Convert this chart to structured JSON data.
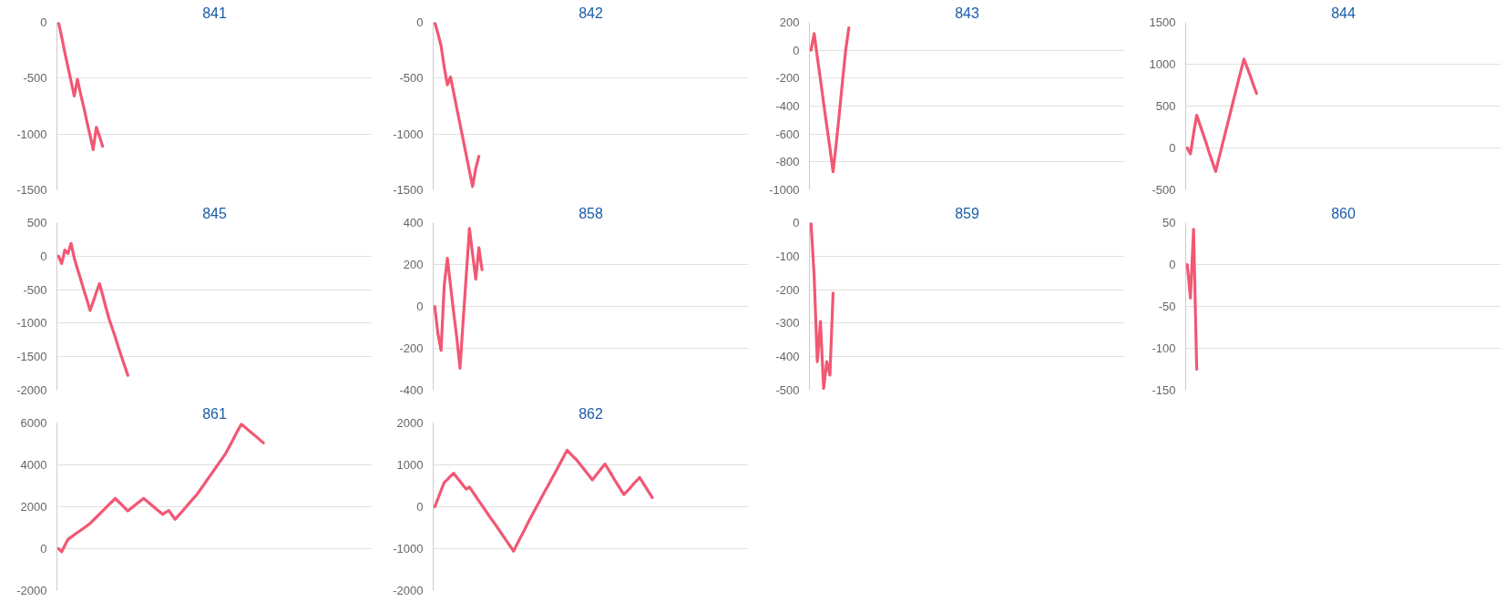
{
  "chart_data": [
    {
      "type": "line",
      "title": "841",
      "tick_labels": "y",
      "grid": "y",
      "color": "#f25773",
      "ylim": [
        -1500,
        0
      ],
      "yticks": [
        -1500,
        -1000,
        -500,
        0
      ],
      "categories": [
        null,
        null,
        null,
        null,
        null,
        null,
        null,
        null,
        null,
        null,
        null,
        null,
        null,
        null,
        null,
        null,
        null,
        null,
        null,
        null,
        null,
        null,
        null,
        null,
        null,
        null,
        null,
        null,
        null,
        null,
        null,
        null,
        null,
        null,
        null,
        null,
        null,
        null,
        null,
        null,
        null,
        null,
        null,
        null,
        null,
        null,
        null,
        null,
        null,
        null,
        null,
        null,
        null,
        null,
        null,
        null,
        null,
        null,
        null,
        null,
        null,
        null,
        null,
        null,
        null,
        null,
        null,
        null,
        null,
        null,
        null,
        null,
        null,
        null,
        null,
        null,
        null,
        null,
        null,
        null,
        null,
        null,
        null,
        null,
        null,
        null,
        null,
        null,
        null,
        null,
        null,
        null,
        null,
        null,
        null,
        null,
        null,
        null,
        null,
        null
      ],
      "values": [
        0,
        -130,
        -270,
        -400,
        -530,
        -660,
        -510,
        -640,
        -760,
        -890,
        -1010,
        -1140,
        -940,
        -1020,
        -1110,
        null,
        null,
        null,
        null,
        null,
        null,
        null,
        null,
        null,
        null,
        null,
        null,
        null,
        null,
        null,
        null,
        null,
        null,
        null,
        null,
        null,
        null,
        null,
        null,
        null,
        null,
        null,
        null,
        null,
        null,
        null,
        null,
        null,
        null,
        null,
        null,
        null,
        null,
        null,
        null,
        null,
        null,
        null,
        null,
        null,
        null,
        null,
        null,
        null,
        null,
        null,
        null,
        null,
        null,
        null,
        null,
        null,
        null,
        null,
        null,
        null,
        null,
        null,
        null,
        null,
        null,
        null,
        null,
        null,
        null,
        null,
        null,
        null,
        null,
        null,
        null,
        null,
        null,
        null,
        null,
        null,
        null,
        null,
        null,
        null
      ]
    },
    {
      "type": "line",
      "title": "842",
      "tick_labels": "y",
      "grid": "y",
      "color": "#f25773",
      "ylim": [
        -1500,
        0
      ],
      "yticks": [
        -1500,
        -1000,
        -500,
        0
      ],
      "categories": [
        null,
        null,
        null,
        null,
        null,
        null,
        null,
        null,
        null,
        null,
        null,
        null,
        null,
        null,
        null,
        null,
        null,
        null,
        null,
        null,
        null,
        null,
        null,
        null,
        null,
        null,
        null,
        null,
        null,
        null,
        null,
        null,
        null,
        null,
        null,
        null,
        null,
        null,
        null,
        null,
        null,
        null,
        null,
        null,
        null,
        null,
        null,
        null,
        null,
        null,
        null,
        null,
        null,
        null,
        null,
        null,
        null,
        null,
        null,
        null,
        null,
        null,
        null,
        null,
        null,
        null,
        null,
        null,
        null,
        null,
        null,
        null,
        null,
        null,
        null,
        null,
        null,
        null,
        null,
        null,
        null,
        null,
        null,
        null,
        null,
        null,
        null,
        null,
        null,
        null,
        null,
        null,
        null,
        null,
        null,
        null,
        null,
        null,
        null,
        null
      ],
      "values": [
        0,
        -100,
        -210,
        -400,
        -560,
        -490,
        -630,
        -770,
        -910,
        -1050,
        -1190,
        -1330,
        -1470,
        -1310,
        -1200,
        null,
        null,
        null,
        null,
        null,
        null,
        null,
        null,
        null,
        null,
        null,
        null,
        null,
        null,
        null,
        null,
        null,
        null,
        null,
        null,
        null,
        null,
        null,
        null,
        null,
        null,
        null,
        null,
        null,
        null,
        null,
        null,
        null,
        null,
        null,
        null,
        null,
        null,
        null,
        null,
        null,
        null,
        null,
        null,
        null,
        null,
        null,
        null,
        null,
        null,
        null,
        null,
        null,
        null,
        null,
        null,
        null,
        null,
        null,
        null,
        null,
        null,
        null,
        null,
        null,
        null,
        null,
        null,
        null,
        null,
        null,
        null,
        null,
        null,
        null,
        null,
        null,
        null,
        null,
        null,
        null,
        null,
        null,
        null,
        null
      ]
    },
    {
      "type": "line",
      "title": "843",
      "tick_labels": "y",
      "grid": "y",
      "color": "#f25773",
      "ylim": [
        -1000,
        200
      ],
      "yticks": [
        -1000,
        -800,
        -600,
        -400,
        -200,
        0,
        200
      ],
      "categories": [
        null,
        null,
        null,
        null,
        null,
        null,
        null,
        null,
        null,
        null,
        null,
        null,
        null,
        null,
        null,
        null,
        null,
        null,
        null,
        null,
        null,
        null,
        null,
        null,
        null,
        null,
        null,
        null,
        null,
        null,
        null,
        null,
        null,
        null,
        null,
        null,
        null,
        null,
        null,
        null,
        null,
        null,
        null,
        null,
        null,
        null,
        null,
        null,
        null,
        null,
        null,
        null,
        null,
        null,
        null,
        null,
        null,
        null,
        null,
        null,
        null,
        null,
        null,
        null,
        null,
        null,
        null,
        null,
        null,
        null,
        null,
        null,
        null,
        null,
        null,
        null,
        null,
        null,
        null,
        null,
        null,
        null,
        null,
        null,
        null,
        null,
        null,
        null,
        null,
        null,
        null,
        null,
        null,
        null,
        null,
        null,
        null,
        null,
        null,
        null
      ],
      "values": [
        0,
        120,
        -50,
        -210,
        -380,
        -540,
        -700,
        -870,
        -670,
        -450,
        -220,
        0,
        160,
        null,
        null,
        null,
        null,
        null,
        null,
        null,
        null,
        null,
        null,
        null,
        null,
        null,
        null,
        null,
        null,
        null,
        null,
        null,
        null,
        null,
        null,
        null,
        null,
        null,
        null,
        null,
        null,
        null,
        null,
        null,
        null,
        null,
        null,
        null,
        null,
        null,
        null,
        null,
        null,
        null,
        null,
        null,
        null,
        null,
        null,
        null,
        null,
        null,
        null,
        null,
        null,
        null,
        null,
        null,
        null,
        null,
        null,
        null,
        null,
        null,
        null,
        null,
        null,
        null,
        null,
        null,
        null,
        null,
        null,
        null,
        null,
        null,
        null,
        null,
        null,
        null,
        null,
        null,
        null,
        null,
        null,
        null,
        null,
        null,
        null,
        null
      ]
    },
    {
      "type": "line",
      "title": "844",
      "tick_labels": "y",
      "grid": "y",
      "color": "#f25773",
      "ylim": [
        -500,
        1500
      ],
      "yticks": [
        -500,
        0,
        500,
        1000,
        1500
      ],
      "categories": [
        null,
        null,
        null,
        null,
        null,
        null,
        null,
        null,
        null,
        null,
        null,
        null,
        null,
        null,
        null,
        null,
        null,
        null,
        null,
        null,
        null,
        null,
        null,
        null,
        null,
        null,
        null,
        null,
        null,
        null,
        null,
        null,
        null,
        null,
        null,
        null,
        null,
        null,
        null,
        null,
        null,
        null,
        null,
        null,
        null,
        null,
        null,
        null,
        null,
        null,
        null,
        null,
        null,
        null,
        null,
        null,
        null,
        null,
        null,
        null,
        null,
        null,
        null,
        null,
        null,
        null,
        null,
        null,
        null,
        null,
        null,
        null,
        null,
        null,
        null,
        null,
        null,
        null,
        null,
        null,
        null,
        null,
        null,
        null,
        null,
        null,
        null,
        null,
        null,
        null,
        null,
        null,
        null,
        null,
        null,
        null,
        null,
        null,
        null,
        null
      ],
      "values": [
        0,
        -70,
        170,
        390,
        280,
        170,
        60,
        -60,
        -170,
        -280,
        -130,
        20,
        170,
        320,
        470,
        620,
        770,
        920,
        1060,
        960,
        860,
        750,
        650,
        null,
        null,
        null,
        null,
        null,
        null,
        null,
        null,
        null,
        null,
        null,
        null,
        null,
        null,
        null,
        null,
        null,
        null,
        null,
        null,
        null,
        null,
        null,
        null,
        null,
        null,
        null,
        null,
        null,
        null,
        null,
        null,
        null,
        null,
        null,
        null,
        null,
        null,
        null,
        null,
        null,
        null,
        null,
        null,
        null,
        null,
        null,
        null,
        null,
        null,
        null,
        null,
        null,
        null,
        null,
        null,
        null,
        null,
        null,
        null,
        null,
        null,
        null,
        null,
        null,
        null,
        null,
        null,
        null,
        null,
        null,
        null,
        null,
        null,
        null,
        null,
        null
      ]
    },
    {
      "type": "line",
      "title": "845",
      "tick_labels": "y",
      "grid": "y",
      "color": "#f25773",
      "ylim": [
        -2000,
        500
      ],
      "yticks": [
        -2000,
        -1500,
        -1000,
        -500,
        0,
        500
      ],
      "categories": [
        null,
        null,
        null,
        null,
        null,
        null,
        null,
        null,
        null,
        null,
        null,
        null,
        null,
        null,
        null,
        null,
        null,
        null,
        null,
        null,
        null,
        null,
        null,
        null,
        null,
        null,
        null,
        null,
        null,
        null,
        null,
        null,
        null,
        null,
        null,
        null,
        null,
        null,
        null,
        null,
        null,
        null,
        null,
        null,
        null,
        null,
        null,
        null,
        null,
        null,
        null,
        null,
        null,
        null,
        null,
        null,
        null,
        null,
        null,
        null,
        null,
        null,
        null,
        null,
        null,
        null,
        null,
        null,
        null,
        null,
        null,
        null,
        null,
        null,
        null,
        null,
        null,
        null,
        null,
        null,
        null,
        null,
        null,
        null,
        null,
        null,
        null,
        null,
        null,
        null,
        null,
        null,
        null,
        null,
        null,
        null,
        null,
        null,
        null,
        null
      ],
      "values": [
        0,
        -110,
        90,
        40,
        190,
        -30,
        -190,
        -340,
        -500,
        -650,
        -810,
        -680,
        -540,
        -410,
        -580,
        -760,
        -930,
        -1070,
        -1210,
        -1360,
        -1500,
        -1640,
        -1780,
        null,
        null,
        null,
        null,
        null,
        null,
        null,
        null,
        null,
        null,
        null,
        null,
        null,
        null,
        null,
        null,
        null,
        null,
        null,
        null,
        null,
        null,
        null,
        null,
        null,
        null,
        null,
        null,
        null,
        null,
        null,
        null,
        null,
        null,
        null,
        null,
        null,
        null,
        null,
        null,
        null,
        null,
        null,
        null,
        null,
        null,
        null,
        null,
        null,
        null,
        null,
        null,
        null,
        null,
        null,
        null,
        null,
        null,
        null,
        null,
        null,
        null,
        null,
        null,
        null,
        null,
        null,
        null,
        null,
        null,
        null,
        null,
        null,
        null,
        null,
        null,
        null
      ]
    },
    {
      "type": "line",
      "title": "858",
      "tick_labels": "y",
      "grid": "y",
      "color": "#f25773",
      "ylim": [
        -400,
        400
      ],
      "yticks": [
        -400,
        -200,
        0,
        200,
        400
      ],
      "categories": [
        null,
        null,
        null,
        null,
        null,
        null,
        null,
        null,
        null,
        null,
        null,
        null,
        null,
        null,
        null,
        null,
        null,
        null,
        null,
        null,
        null,
        null,
        null,
        null,
        null,
        null,
        null,
        null,
        null,
        null,
        null,
        null,
        null,
        null,
        null,
        null,
        null,
        null,
        null,
        null,
        null,
        null,
        null,
        null,
        null,
        null,
        null,
        null,
        null,
        null,
        null,
        null,
        null,
        null,
        null,
        null,
        null,
        null,
        null,
        null,
        null,
        null,
        null,
        null,
        null,
        null,
        null,
        null,
        null,
        null,
        null,
        null,
        null,
        null,
        null,
        null,
        null,
        null,
        null,
        null,
        null,
        null,
        null,
        null,
        null,
        null,
        null,
        null,
        null,
        null,
        null,
        null,
        null,
        null,
        null,
        null,
        null,
        null,
        null,
        null
      ],
      "values": [
        0,
        -130,
        -210,
        100,
        230,
        100,
        -30,
        -150,
        -295,
        -70,
        150,
        372,
        250,
        130,
        280,
        175,
        null,
        null,
        null,
        null,
        null,
        null,
        null,
        null,
        null,
        null,
        null,
        null,
        null,
        null,
        null,
        null,
        null,
        null,
        null,
        null,
        null,
        null,
        null,
        null,
        null,
        null,
        null,
        null,
        null,
        null,
        null,
        null,
        null,
        null,
        null,
        null,
        null,
        null,
        null,
        null,
        null,
        null,
        null,
        null,
        null,
        null,
        null,
        null,
        null,
        null,
        null,
        null,
        null,
        null,
        null,
        null,
        null,
        null,
        null,
        null,
        null,
        null,
        null,
        null,
        null,
        null,
        null,
        null,
        null,
        null,
        null,
        null,
        null,
        null,
        null,
        null,
        null,
        null,
        null,
        null,
        null,
        null,
        null,
        null
      ]
    },
    {
      "type": "line",
      "title": "859",
      "tick_labels": "y",
      "grid": "y",
      "color": "#f25773",
      "ylim": [
        -500,
        0
      ],
      "yticks": [
        -500,
        -400,
        -300,
        -200,
        -100,
        0
      ],
      "categories": [
        null,
        null,
        null,
        null,
        null,
        null,
        null,
        null,
        null,
        null,
        null,
        null,
        null,
        null,
        null,
        null,
        null,
        null,
        null,
        null,
        null,
        null,
        null,
        null,
        null,
        null,
        null,
        null,
        null,
        null,
        null,
        null,
        null,
        null,
        null,
        null,
        null,
        null,
        null,
        null,
        null,
        null,
        null,
        null,
        null,
        null,
        null,
        null,
        null,
        null,
        null,
        null,
        null,
        null,
        null,
        null,
        null,
        null,
        null,
        null,
        null,
        null,
        null,
        null,
        null,
        null,
        null,
        null,
        null,
        null,
        null,
        null,
        null,
        null,
        null,
        null,
        null,
        null,
        null,
        null,
        null,
        null,
        null,
        null,
        null,
        null,
        null,
        null,
        null,
        null,
        null,
        null,
        null,
        null,
        null,
        null,
        null,
        null,
        null,
        null
      ],
      "values": [
        0,
        -160,
        -415,
        -295,
        -495,
        -415,
        -455,
        -210,
        null,
        null,
        null,
        null,
        null,
        null,
        null,
        null,
        null,
        null,
        null,
        null,
        null,
        null,
        null,
        null,
        null,
        null,
        null,
        null,
        null,
        null,
        null,
        null,
        null,
        null,
        null,
        null,
        null,
        null,
        null,
        null,
        null,
        null,
        null,
        null,
        null,
        null,
        null,
        null,
        null,
        null,
        null,
        null,
        null,
        null,
        null,
        null,
        null,
        null,
        null,
        null,
        null,
        null,
        null,
        null,
        null,
        null,
        null,
        null,
        null,
        null,
        null,
        null,
        null,
        null,
        null,
        null,
        null,
        null,
        null,
        null,
        null,
        null,
        null,
        null,
        null,
        null,
        null,
        null,
        null,
        null,
        null,
        null,
        null,
        null,
        null,
        null,
        null,
        null,
        null,
        null
      ]
    },
    {
      "type": "line",
      "title": "860",
      "tick_labels": "y",
      "grid": "y",
      "color": "#f25773",
      "ylim": [
        -150,
        50
      ],
      "yticks": [
        -150,
        -100,
        -50,
        0,
        50
      ],
      "categories": [
        null,
        null,
        null,
        null,
        null,
        null,
        null,
        null,
        null,
        null,
        null,
        null,
        null,
        null,
        null,
        null,
        null,
        null,
        null,
        null,
        null,
        null,
        null,
        null,
        null,
        null,
        null,
        null,
        null,
        null,
        null,
        null,
        null,
        null,
        null,
        null,
        null,
        null,
        null,
        null,
        null,
        null,
        null,
        null,
        null,
        null,
        null,
        null,
        null,
        null,
        null,
        null,
        null,
        null,
        null,
        null,
        null,
        null,
        null,
        null,
        null,
        null,
        null,
        null,
        null,
        null,
        null,
        null,
        null,
        null,
        null,
        null,
        null,
        null,
        null,
        null,
        null,
        null,
        null,
        null,
        null,
        null,
        null,
        null,
        null,
        null,
        null,
        null,
        null,
        null,
        null,
        null,
        null,
        null,
        null,
        null,
        null,
        null,
        null,
        null
      ],
      "values": [
        0,
        -40,
        42,
        -125,
        null,
        null,
        null,
        null,
        null,
        null,
        null,
        null,
        null,
        null,
        null,
        null,
        null,
        null,
        null,
        null,
        null,
        null,
        null,
        null,
        null,
        null,
        null,
        null,
        null,
        null,
        null,
        null,
        null,
        null,
        null,
        null,
        null,
        null,
        null,
        null,
        null,
        null,
        null,
        null,
        null,
        null,
        null,
        null,
        null,
        null,
        null,
        null,
        null,
        null,
        null,
        null,
        null,
        null,
        null,
        null,
        null,
        null,
        null,
        null,
        null,
        null,
        null,
        null,
        null,
        null,
        null,
        null,
        null,
        null,
        null,
        null,
        null,
        null,
        null,
        null,
        null,
        null,
        null,
        null,
        null,
        null,
        null,
        null,
        null,
        null,
        null,
        null,
        null,
        null,
        null,
        null,
        null,
        null,
        null,
        null
      ]
    },
    {
      "type": "line",
      "title": "861",
      "tick_labels": "y",
      "grid": "y",
      "color": "#f25773",
      "ylim": [
        -2000,
        6000
      ],
      "yticks": [
        -2000,
        0,
        2000,
        4000,
        6000
      ],
      "categories": [
        null,
        null,
        null,
        null,
        null,
        null,
        null,
        null,
        null,
        null,
        null,
        null,
        null,
        null,
        null,
        null,
        null,
        null,
        null,
        null,
        null,
        null,
        null,
        null,
        null,
        null,
        null,
        null,
        null,
        null,
        null,
        null,
        null,
        null,
        null,
        null,
        null,
        null,
        null,
        null,
        null,
        null,
        null,
        null,
        null,
        null,
        null,
        null,
        null,
        null,
        null,
        null,
        null,
        null,
        null,
        null,
        null,
        null,
        null,
        null,
        null,
        null,
        null,
        null,
        null,
        null,
        null,
        null,
        null,
        null,
        null,
        null,
        null,
        null,
        null,
        null,
        null,
        null,
        null,
        null,
        null,
        null,
        null,
        null,
        null,
        null,
        null,
        null,
        null,
        null,
        null,
        null,
        null,
        null,
        null,
        null,
        null,
        null,
        null,
        null
      ],
      "values": [
        0,
        -150,
        150,
        440,
        550,
        660,
        770,
        870,
        980,
        1090,
        1200,
        1350,
        1500,
        1650,
        1800,
        1950,
        2100,
        2250,
        2400,
        2250,
        2100,
        1950,
        1800,
        1920,
        2040,
        2160,
        2280,
        2400,
        2270,
        2150,
        2020,
        1890,
        1770,
        1640,
        1730,
        1820,
        1610,
        1400,
        1570,
        1740,
        1910,
        2090,
        2260,
        2430,
        2600,
        2820,
        3030,
        3250,
        3460,
        3680,
        3890,
        4110,
        4320,
        4540,
        4820,
        5100,
        5390,
        5670,
        5950,
        5820,
        5690,
        5560,
        5440,
        5310,
        5180,
        5050,
        null,
        null,
        null,
        null,
        null,
        null,
        null,
        null,
        null,
        null,
        null,
        null,
        null,
        null,
        null,
        null,
        null,
        null,
        null,
        null,
        null,
        null,
        null,
        null,
        null,
        null,
        null,
        null,
        null,
        null,
        null,
        null,
        null,
        null
      ]
    },
    {
      "type": "line",
      "title": "862",
      "tick_labels": "y",
      "grid": "y",
      "color": "#f25773",
      "ylim": [
        -2000,
        2000
      ],
      "yticks": [
        -2000,
        -1000,
        0,
        1000,
        2000
      ],
      "categories": [
        null,
        null,
        null,
        null,
        null,
        null,
        null,
        null,
        null,
        null,
        null,
        null,
        null,
        null,
        null,
        null,
        null,
        null,
        null,
        null,
        null,
        null,
        null,
        null,
        null,
        null,
        null,
        null,
        null,
        null,
        null,
        null,
        null,
        null,
        null,
        null,
        null,
        null,
        null,
        null,
        null,
        null,
        null,
        null,
        null,
        null,
        null,
        null,
        null,
        null,
        null,
        null,
        null,
        null,
        null,
        null,
        null,
        null,
        null,
        null,
        null,
        null,
        null,
        null,
        null,
        null,
        null,
        null,
        null,
        null,
        null,
        null,
        null,
        null,
        null,
        null,
        null,
        null,
        null,
        null,
        null,
        null,
        null,
        null,
        null,
        null,
        null,
        null,
        null,
        null,
        null,
        null,
        null,
        null,
        null,
        null,
        null,
        null,
        null,
        null
      ],
      "values": [
        0,
        190,
        390,
        580,
        650,
        730,
        800,
        700,
        610,
        510,
        420,
        470,
        360,
        250,
        140,
        30,
        -80,
        -190,
        -300,
        -400,
        -510,
        -620,
        -730,
        -840,
        -950,
        -1060,
        -910,
        -760,
        -620,
        -470,
        -320,
        -180,
        -40,
        100,
        240,
        380,
        510,
        650,
        790,
        930,
        1070,
        1210,
        1350,
        1270,
        1190,
        1120,
        1020,
        930,
        830,
        740,
        640,
        740,
        830,
        930,
        1020,
        900,
        780,
        650,
        530,
        410,
        290,
        370,
        450,
        540,
        620,
        700,
        580,
        460,
        340,
        220,
        null,
        null,
        null,
        null,
        null,
        null,
        null,
        null,
        null,
        null,
        null,
        null,
        null,
        null,
        null,
        null,
        null,
        null,
        null,
        null,
        null,
        null,
        null,
        null,
        null,
        null,
        null,
        null,
        null,
        null
      ]
    }
  ]
}
